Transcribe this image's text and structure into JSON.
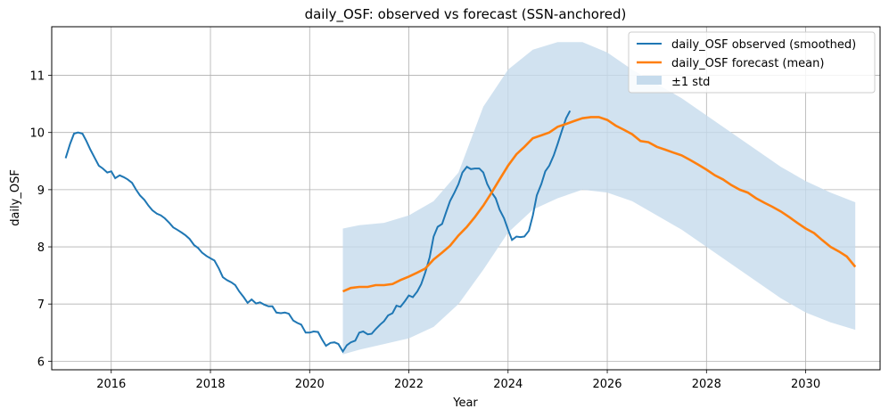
{
  "chart_data": {
    "type": "line",
    "title": "daily_OSF: observed vs forecast (SSN-anchored)",
    "xlabel": "Year",
    "ylabel": "daily_OSF",
    "xlim": [
      2014.8,
      2031.5
    ],
    "ylim": [
      5.85,
      11.85
    ],
    "x_ticks": [
      2016,
      2018,
      2020,
      2022,
      2024,
      2026,
      2028,
      2030
    ],
    "y_ticks": [
      6,
      7,
      8,
      9,
      10,
      11
    ],
    "grid": true,
    "legend_position": "top-right",
    "colors": {
      "observed": "#1f77b4",
      "forecast": "#ff7f0e",
      "band": "#c6dbec"
    },
    "series": [
      {
        "name": "daily_OSF observed (smoothed)",
        "style": "line",
        "points": [
          [
            2015.08,
            9.55
          ],
          [
            2015.17,
            9.8
          ],
          [
            2015.25,
            9.98
          ],
          [
            2015.33,
            10.0
          ],
          [
            2015.42,
            9.98
          ],
          [
            2015.5,
            9.85
          ],
          [
            2015.58,
            9.7
          ],
          [
            2015.67,
            9.55
          ],
          [
            2015.75,
            9.42
          ],
          [
            2015.83,
            9.37
          ],
          [
            2015.92,
            9.3
          ],
          [
            2016.0,
            9.32
          ],
          [
            2016.08,
            9.2
          ],
          [
            2016.17,
            9.25
          ],
          [
            2016.25,
            9.22
          ],
          [
            2016.33,
            9.18
          ],
          [
            2016.42,
            9.12
          ],
          [
            2016.5,
            9.0
          ],
          [
            2016.58,
            8.9
          ],
          [
            2016.67,
            8.82
          ],
          [
            2016.75,
            8.72
          ],
          [
            2016.83,
            8.64
          ],
          [
            2016.92,
            8.58
          ],
          [
            2017.0,
            8.55
          ],
          [
            2017.08,
            8.5
          ],
          [
            2017.17,
            8.42
          ],
          [
            2017.25,
            8.34
          ],
          [
            2017.33,
            8.3
          ],
          [
            2017.42,
            8.25
          ],
          [
            2017.5,
            8.2
          ],
          [
            2017.58,
            8.14
          ],
          [
            2017.67,
            8.03
          ],
          [
            2017.75,
            7.98
          ],
          [
            2017.83,
            7.9
          ],
          [
            2017.92,
            7.84
          ],
          [
            2018.0,
            7.8
          ],
          [
            2018.08,
            7.76
          ],
          [
            2018.17,
            7.62
          ],
          [
            2018.25,
            7.47
          ],
          [
            2018.33,
            7.42
          ],
          [
            2018.42,
            7.38
          ],
          [
            2018.5,
            7.33
          ],
          [
            2018.58,
            7.22
          ],
          [
            2018.67,
            7.12
          ],
          [
            2018.75,
            7.02
          ],
          [
            2018.83,
            7.08
          ],
          [
            2018.92,
            7.01
          ],
          [
            2019.0,
            7.03
          ],
          [
            2019.08,
            6.99
          ],
          [
            2019.17,
            6.96
          ],
          [
            2019.25,
            6.96
          ],
          [
            2019.33,
            6.85
          ],
          [
            2019.42,
            6.84
          ],
          [
            2019.5,
            6.85
          ],
          [
            2019.58,
            6.83
          ],
          [
            2019.67,
            6.71
          ],
          [
            2019.75,
            6.67
          ],
          [
            2019.83,
            6.64
          ],
          [
            2019.92,
            6.5
          ],
          [
            2020.0,
            6.5
          ],
          [
            2020.08,
            6.52
          ],
          [
            2020.17,
            6.51
          ],
          [
            2020.25,
            6.38
          ],
          [
            2020.33,
            6.27
          ],
          [
            2020.42,
            6.32
          ],
          [
            2020.5,
            6.33
          ],
          [
            2020.58,
            6.3
          ],
          [
            2020.67,
            6.17
          ],
          [
            2020.75,
            6.28
          ],
          [
            2020.83,
            6.33
          ],
          [
            2020.92,
            6.36
          ],
          [
            2021.0,
            6.5
          ],
          [
            2021.08,
            6.52
          ],
          [
            2021.17,
            6.47
          ],
          [
            2021.25,
            6.48
          ],
          [
            2021.33,
            6.56
          ],
          [
            2021.42,
            6.64
          ],
          [
            2021.5,
            6.7
          ],
          [
            2021.58,
            6.8
          ],
          [
            2021.67,
            6.84
          ],
          [
            2021.75,
            6.97
          ],
          [
            2021.83,
            6.95
          ],
          [
            2021.92,
            7.05
          ],
          [
            2022.0,
            7.15
          ],
          [
            2022.08,
            7.12
          ],
          [
            2022.17,
            7.22
          ],
          [
            2022.25,
            7.35
          ],
          [
            2022.33,
            7.55
          ],
          [
            2022.42,
            7.82
          ],
          [
            2022.5,
            8.18
          ],
          [
            2022.58,
            8.35
          ],
          [
            2022.67,
            8.4
          ],
          [
            2022.75,
            8.6
          ],
          [
            2022.83,
            8.8
          ],
          [
            2022.92,
            8.95
          ],
          [
            2023.0,
            9.1
          ],
          [
            2023.08,
            9.3
          ],
          [
            2023.17,
            9.4
          ],
          [
            2023.25,
            9.36
          ],
          [
            2023.33,
            9.37
          ],
          [
            2023.42,
            9.37
          ],
          [
            2023.5,
            9.3
          ],
          [
            2023.58,
            9.1
          ],
          [
            2023.67,
            8.95
          ],
          [
            2023.75,
            8.85
          ],
          [
            2023.83,
            8.65
          ],
          [
            2023.92,
            8.5
          ],
          [
            2024.0,
            8.3
          ],
          [
            2024.08,
            8.12
          ],
          [
            2024.17,
            8.18
          ],
          [
            2024.25,
            8.17
          ],
          [
            2024.33,
            8.18
          ],
          [
            2024.42,
            8.28
          ],
          [
            2024.5,
            8.55
          ],
          [
            2024.58,
            8.9
          ],
          [
            2024.67,
            9.1
          ],
          [
            2024.75,
            9.32
          ],
          [
            2024.83,
            9.42
          ],
          [
            2024.92,
            9.6
          ],
          [
            2025.0,
            9.8
          ],
          [
            2025.08,
            10.02
          ],
          [
            2025.17,
            10.25
          ],
          [
            2025.25,
            10.38
          ]
        ]
      },
      {
        "name": "daily_OSF forecast (mean)",
        "style": "line",
        "points": [
          [
            2020.67,
            7.22
          ],
          [
            2020.83,
            7.28
          ],
          [
            2021.0,
            7.3
          ],
          [
            2021.17,
            7.3
          ],
          [
            2021.33,
            7.33
          ],
          [
            2021.5,
            7.33
          ],
          [
            2021.67,
            7.35
          ],
          [
            2021.83,
            7.42
          ],
          [
            2022.0,
            7.48
          ],
          [
            2022.17,
            7.55
          ],
          [
            2022.33,
            7.62
          ],
          [
            2022.5,
            7.78
          ],
          [
            2022.67,
            7.9
          ],
          [
            2022.83,
            8.02
          ],
          [
            2023.0,
            8.2
          ],
          [
            2023.17,
            8.35
          ],
          [
            2023.33,
            8.52
          ],
          [
            2023.5,
            8.72
          ],
          [
            2023.67,
            8.95
          ],
          [
            2023.83,
            9.18
          ],
          [
            2024.0,
            9.42
          ],
          [
            2024.17,
            9.62
          ],
          [
            2024.33,
            9.75
          ],
          [
            2024.5,
            9.9
          ],
          [
            2024.67,
            9.95
          ],
          [
            2024.83,
            10.0
          ],
          [
            2025.0,
            10.1
          ],
          [
            2025.17,
            10.15
          ],
          [
            2025.33,
            10.2
          ],
          [
            2025.5,
            10.25
          ],
          [
            2025.67,
            10.27
          ],
          [
            2025.83,
            10.27
          ],
          [
            2026.0,
            10.22
          ],
          [
            2026.17,
            10.12
          ],
          [
            2026.33,
            10.05
          ],
          [
            2026.5,
            9.97
          ],
          [
            2026.67,
            9.85
          ],
          [
            2026.83,
            9.83
          ],
          [
            2027.0,
            9.75
          ],
          [
            2027.17,
            9.7
          ],
          [
            2027.33,
            9.65
          ],
          [
            2027.5,
            9.6
          ],
          [
            2027.67,
            9.52
          ],
          [
            2027.83,
            9.44
          ],
          [
            2028.0,
            9.35
          ],
          [
            2028.17,
            9.25
          ],
          [
            2028.33,
            9.18
          ],
          [
            2028.5,
            9.08
          ],
          [
            2028.67,
            9.0
          ],
          [
            2028.83,
            8.95
          ],
          [
            2029.0,
            8.85
          ],
          [
            2029.17,
            8.77
          ],
          [
            2029.33,
            8.7
          ],
          [
            2029.5,
            8.62
          ],
          [
            2029.67,
            8.52
          ],
          [
            2029.83,
            8.42
          ],
          [
            2030.0,
            8.32
          ],
          [
            2030.17,
            8.24
          ],
          [
            2030.33,
            8.12
          ],
          [
            2030.5,
            8.0
          ],
          [
            2030.67,
            7.92
          ],
          [
            2030.83,
            7.83
          ],
          [
            2031.0,
            7.65
          ]
        ]
      },
      {
        "name": "±1 std",
        "style": "band",
        "x": [
          2020.67,
          2021.0,
          2021.5,
          2022.0,
          2022.5,
          2023.0,
          2023.5,
          2024.0,
          2024.5,
          2025.0,
          2025.5,
          2026.0,
          2026.5,
          2027.0,
          2027.5,
          2028.0,
          2028.5,
          2029.0,
          2029.5,
          2030.0,
          2030.5,
          2031.0
        ],
        "upper": [
          8.32,
          8.38,
          8.42,
          8.55,
          8.8,
          9.3,
          10.45,
          11.1,
          11.45,
          11.58,
          11.58,
          11.4,
          11.1,
          10.85,
          10.6,
          10.3,
          10.0,
          9.7,
          9.4,
          9.15,
          8.95,
          8.78
        ],
        "lower": [
          6.12,
          6.2,
          6.3,
          6.4,
          6.6,
          7.0,
          7.6,
          8.25,
          8.65,
          8.85,
          9.0,
          8.95,
          8.8,
          8.55,
          8.3,
          8.0,
          7.7,
          7.4,
          7.1,
          6.85,
          6.68,
          6.55
        ]
      }
    ]
  }
}
